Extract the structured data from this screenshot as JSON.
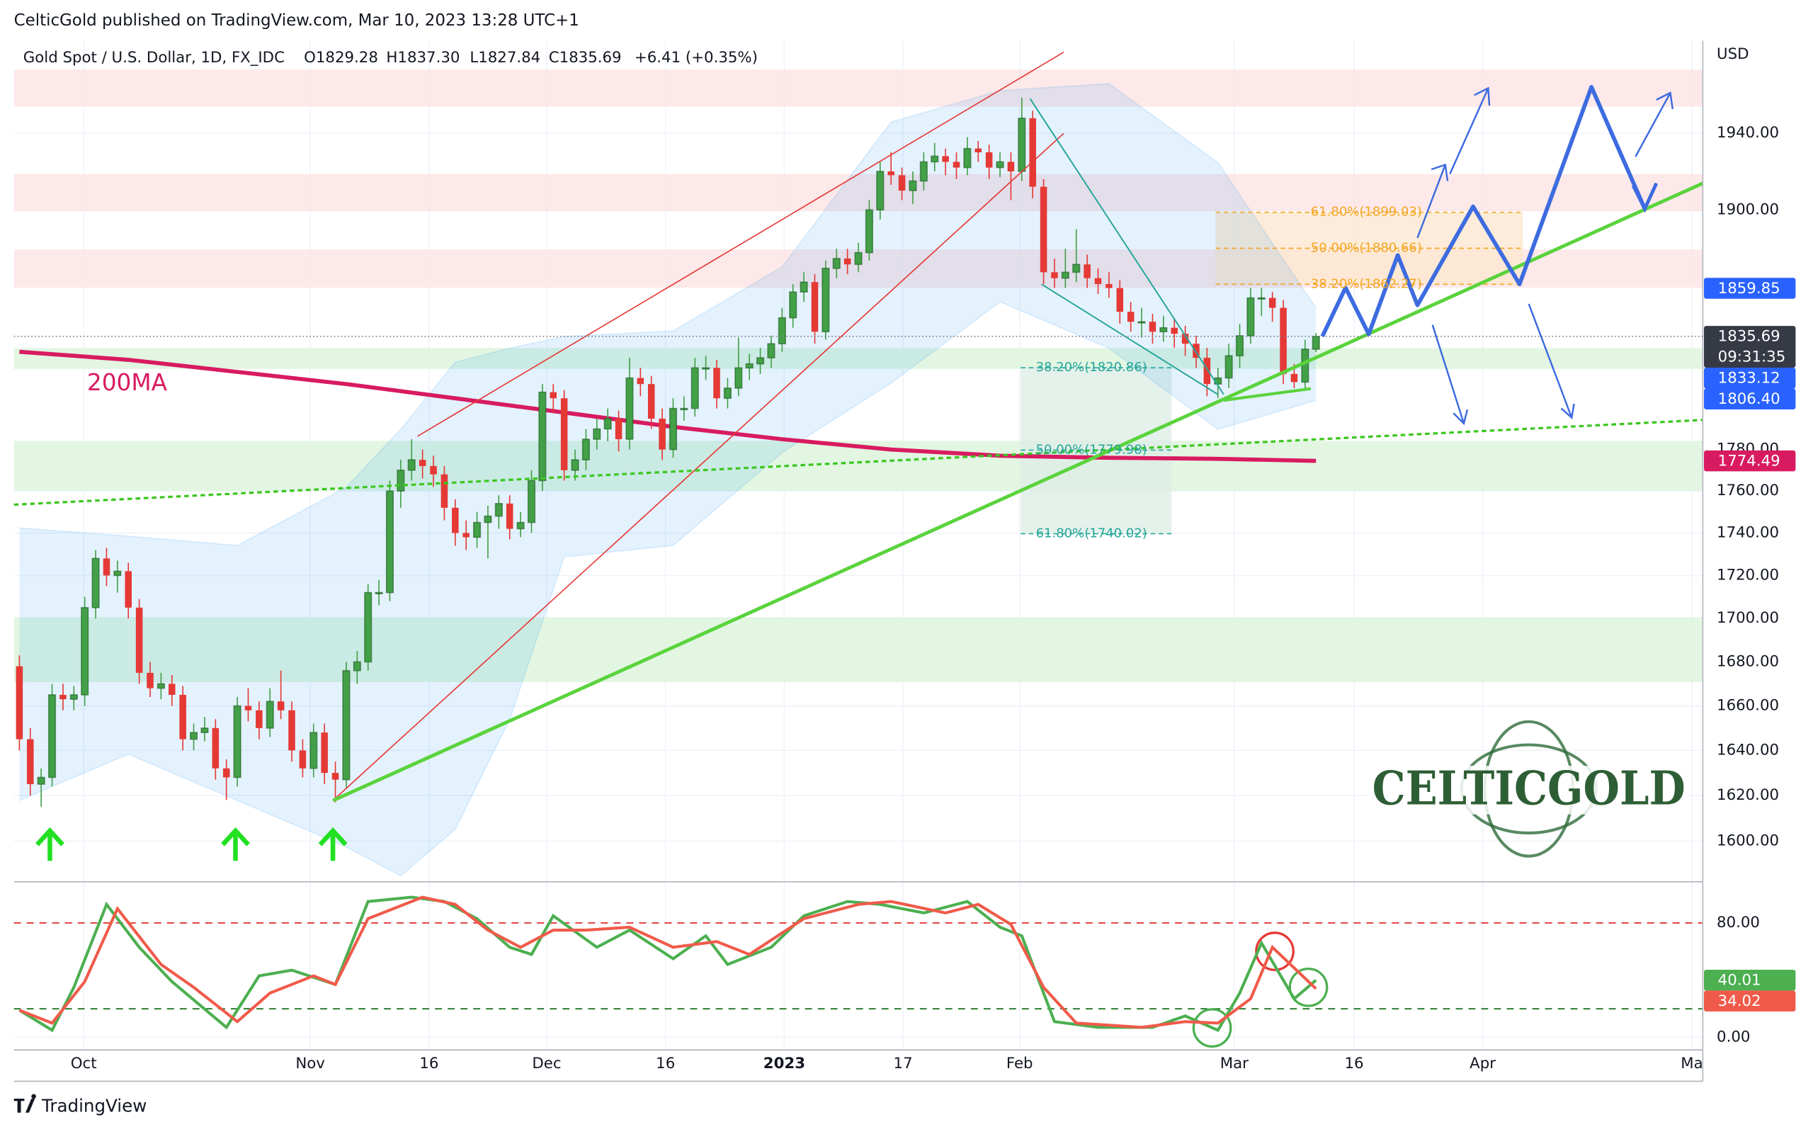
{
  "chart_data": {
    "type": "candlestick",
    "header": "CelticGold published on TradingView.com, Mar 10, 2023 13:28 UTC+1",
    "title": "Gold Spot / U.S. Dollar, 1D, FX_IDC",
    "ohlc_texts": [
      "O1829.28",
      "H1837.30",
      "L1827.84",
      "C1835.69",
      "+6.41 (+0.35%)"
    ],
    "currency": "USD",
    "footer": "TradingView",
    "logo": "CELTICGOLD",
    "log_scale": true,
    "grid": true,
    "up_color": "#43a047",
    "down_color": "#e53935",
    "xlim": [
      -0.5,
      154.5
    ],
    "xticks": [
      {
        "value": 5.9,
        "label": "Oct"
      },
      {
        "value": 26.7,
        "label": "Nov"
      },
      {
        "value": 37.6,
        "label": "16"
      },
      {
        "value": 48.4,
        "label": "Dec"
      },
      {
        "value": 59.3,
        "label": "16"
      },
      {
        "value": 70.2,
        "label": "2023"
      },
      {
        "value": 81.1,
        "label": "17"
      },
      {
        "value": 91.8,
        "label": "Feb"
      },
      {
        "value": 111.5,
        "label": "Mar"
      },
      {
        "value": 122.5,
        "label": "16"
      },
      {
        "value": 134.3,
        "label": "Apr"
      },
      {
        "value": 153.5,
        "label": "Ma"
      }
    ],
    "ylim": [
      1582.4,
      1989.6
    ],
    "yticks": [
      {
        "value": 1600,
        "label": "1600.00"
      },
      {
        "value": 1620,
        "label": "1620.00"
      },
      {
        "value": 1640,
        "label": "1640.00"
      },
      {
        "value": 1660,
        "label": "1660.00"
      },
      {
        "value": 1680,
        "label": "1680.00"
      },
      {
        "value": 1700,
        "label": "1700.00"
      },
      {
        "value": 1720,
        "label": "1720.00"
      },
      {
        "value": 1740,
        "label": "1740.00"
      },
      {
        "value": 1760,
        "label": "1760.00"
      },
      {
        "value": 1780,
        "label": "1780.00"
      },
      {
        "value": 1900,
        "label": "1900.00"
      },
      {
        "value": 1940,
        "label": "1940.00"
      }
    ],
    "candles": [
      [
        1678,
        1683,
        1640,
        1645
      ],
      [
        1645,
        1650,
        1620,
        1625
      ],
      [
        1625,
        1632,
        1615,
        1628
      ],
      [
        1628,
        1670,
        1624,
        1665
      ],
      [
        1665,
        1670,
        1658,
        1663
      ],
      [
        1663,
        1669,
        1658,
        1665
      ],
      [
        1665,
        1710,
        1660,
        1705
      ],
      [
        1705,
        1732,
        1700,
        1728
      ],
      [
        1728,
        1733,
        1715,
        1720
      ],
      [
        1720,
        1727,
        1712,
        1722
      ],
      [
        1722,
        1726,
        1700,
        1705
      ],
      [
        1705,
        1709,
        1670,
        1675
      ],
      [
        1675,
        1680,
        1664,
        1668
      ],
      [
        1668,
        1675,
        1663,
        1670
      ],
      [
        1670,
        1674,
        1660,
        1665
      ],
      [
        1665,
        1669,
        1640,
        1645
      ],
      [
        1645,
        1652,
        1640,
        1648
      ],
      [
        1648,
        1655,
        1644,
        1650
      ],
      [
        1650,
        1654,
        1627,
        1632
      ],
      [
        1632,
        1636,
        1618,
        1628
      ],
      [
        1628,
        1664,
        1624,
        1660
      ],
      [
        1660,
        1668,
        1653,
        1658
      ],
      [
        1658,
        1662,
        1645,
        1650
      ],
      [
        1650,
        1668,
        1646,
        1662
      ],
      [
        1662,
        1676,
        1654,
        1658
      ],
      [
        1658,
        1662,
        1635,
        1640
      ],
      [
        1640,
        1645,
        1628,
        1632
      ],
      [
        1632,
        1652,
        1628,
        1648
      ],
      [
        1648,
        1652,
        1625,
        1630
      ],
      [
        1630,
        1635,
        1617,
        1627
      ],
      [
        1627,
        1680,
        1623,
        1676
      ],
      [
        1676,
        1685,
        1670,
        1680
      ],
      [
        1680,
        1716,
        1676,
        1712
      ],
      [
        1712,
        1718,
        1706,
        1712
      ],
      [
        1712,
        1765,
        1708,
        1760
      ],
      [
        1760,
        1775,
        1752,
        1770
      ],
      [
        1770,
        1785,
        1765,
        1775
      ],
      [
        1775,
        1780,
        1766,
        1772
      ],
      [
        1772,
        1777,
        1762,
        1768
      ],
      [
        1768,
        1772,
        1746,
        1752
      ],
      [
        1752,
        1756,
        1734,
        1740
      ],
      [
        1740,
        1746,
        1732,
        1738
      ],
      [
        1738,
        1750,
        1733,
        1745
      ],
      [
        1745,
        1753,
        1728,
        1748
      ],
      [
        1748,
        1758,
        1742,
        1754
      ],
      [
        1754,
        1758,
        1737,
        1742
      ],
      [
        1742,
        1750,
        1738,
        1745
      ],
      [
        1745,
        1770,
        1740,
        1765
      ],
      [
        1765,
        1812,
        1760,
        1808
      ],
      [
        1808,
        1812,
        1798,
        1805
      ],
      [
        1805,
        1809,
        1765,
        1770
      ],
      [
        1770,
        1780,
        1765,
        1775
      ],
      [
        1775,
        1790,
        1770,
        1785
      ],
      [
        1785,
        1795,
        1780,
        1790
      ],
      [
        1790,
        1800,
        1784,
        1795
      ],
      [
        1795,
        1799,
        1779,
        1785
      ],
      [
        1785,
        1825,
        1780,
        1815
      ],
      [
        1815,
        1820,
        1806,
        1812
      ],
      [
        1812,
        1816,
        1790,
        1795
      ],
      [
        1795,
        1800,
        1775,
        1780
      ],
      [
        1780,
        1805,
        1776,
        1800
      ],
      [
        1800,
        1806,
        1794,
        1800
      ],
      [
        1800,
        1825,
        1796,
        1820
      ],
      [
        1820,
        1826,
        1814,
        1820
      ],
      [
        1820,
        1824,
        1800,
        1805
      ],
      [
        1805,
        1815,
        1800,
        1810
      ],
      [
        1810,
        1835,
        1806,
        1820
      ],
      [
        1820,
        1827,
        1814,
        1822
      ],
      [
        1822,
        1830,
        1817,
        1825
      ],
      [
        1825,
        1836,
        1820,
        1832
      ],
      [
        1832,
        1850,
        1828,
        1845
      ],
      [
        1845,
        1862,
        1840,
        1858
      ],
      [
        1858,
        1868,
        1853,
        1863
      ],
      [
        1863,
        1867,
        1832,
        1838
      ],
      [
        1838,
        1874,
        1834,
        1870
      ],
      [
        1870,
        1880,
        1865,
        1875
      ],
      [
        1875,
        1880,
        1867,
        1872
      ],
      [
        1872,
        1883,
        1868,
        1878
      ],
      [
        1878,
        1905,
        1874,
        1900
      ],
      [
        1900,
        1925,
        1895,
        1920
      ],
      [
        1920,
        1930,
        1913,
        1918
      ],
      [
        1918,
        1922,
        1905,
        1910
      ],
      [
        1910,
        1920,
        1903,
        1915
      ],
      [
        1915,
        1930,
        1910,
        1925
      ],
      [
        1925,
        1935,
        1920,
        1928
      ],
      [
        1928,
        1932,
        1918,
        1925
      ],
      [
        1925,
        1930,
        1916,
        1922
      ],
      [
        1922,
        1938,
        1918,
        1932
      ],
      [
        1932,
        1936,
        1925,
        1930
      ],
      [
        1930,
        1934,
        1916,
        1922
      ],
      [
        1922,
        1930,
        1917,
        1925
      ],
      [
        1925,
        1930,
        1905,
        1920
      ],
      [
        1920,
        1959,
        1915,
        1948
      ],
      [
        1948,
        1952,
        1906,
        1912
      ],
      [
        1912,
        1916,
        1862,
        1868
      ],
      [
        1868,
        1875,
        1860,
        1865
      ],
      [
        1865,
        1880,
        1860,
        1868
      ],
      [
        1868,
        1890,
        1863,
        1872
      ],
      [
        1872,
        1877,
        1860,
        1865
      ],
      [
        1865,
        1870,
        1857,
        1862
      ],
      [
        1862,
        1868,
        1855,
        1860
      ],
      [
        1860,
        1864,
        1842,
        1848
      ],
      [
        1848,
        1853,
        1838,
        1843
      ],
      [
        1843,
        1850,
        1835,
        1843
      ],
      [
        1843,
        1847,
        1832,
        1838
      ],
      [
        1838,
        1846,
        1833,
        1840
      ],
      [
        1840,
        1845,
        1830,
        1837
      ],
      [
        1837,
        1841,
        1826,
        1832
      ],
      [
        1832,
        1836,
        1820,
        1825
      ],
      [
        1825,
        1830,
        1806,
        1812
      ],
      [
        1812,
        1820,
        1805,
        1815
      ],
      [
        1815,
        1832,
        1810,
        1826
      ],
      [
        1826,
        1842,
        1820,
        1836
      ],
      [
        1836,
        1860,
        1832,
        1855
      ],
      [
        1855,
        1860,
        1846,
        1855
      ],
      [
        1855,
        1858,
        1843,
        1850
      ],
      [
        1850,
        1854,
        1812,
        1817
      ],
      [
        1817,
        1822,
        1810,
        1813
      ],
      [
        1813,
        1834,
        1809,
        1829.28
      ],
      [
        1829.28,
        1837.3,
        1827.84,
        1835.69
      ]
    ],
    "countdown": "09:31:35",
    "last_color": "#363a45",
    "ma": {
      "name": "200MA",
      "color": "#d81b60",
      "x": [
        0,
        10,
        20,
        30,
        40,
        50,
        60,
        70,
        80,
        90,
        100,
        110,
        119
      ],
      "values": [
        1828,
        1824,
        1818,
        1812,
        1805,
        1798,
        1791,
        1785,
        1780,
        1777,
        1776,
        1775.5,
        1774.49
      ]
    },
    "bollinger": {
      "color": "#2196f3",
      "x": [
        0,
        10,
        20,
        30,
        35,
        40,
        45,
        50,
        60,
        70,
        80,
        90,
        100,
        110,
        119
      ],
      "upper": [
        1742.4,
        1738.5,
        1734.1,
        1761.8,
        1789.8,
        1822.8,
        1829.8,
        1835.6,
        1838.4,
        1870.7,
        1946,
        1962.7,
        1966.4,
        1924.6,
        1850
      ],
      "lower": [
        1617.8,
        1638.3,
        1617.8,
        1597.5,
        1584.9,
        1605.1,
        1653.9,
        1728.7,
        1734.1,
        1778.5,
        1812.5,
        1853,
        1829.8,
        1789.8,
        1804
      ]
    },
    "price_labels": [
      {
        "value": 1859.85,
        "label": "1859.85",
        "color": "#2962ff"
      },
      {
        "value": 1833.12,
        "label": "1833.12",
        "color": "#2962ff"
      },
      {
        "value": 1806.4,
        "label": "1806.40",
        "color": "#2962ff"
      }
    ],
    "fib_labels": [
      "61.80%(1899.03)",
      "50.00%(1880.66)",
      "38.20%(1862.27)",
      "38.20%(1820.86)",
      "50.00%(1779.98)",
      "61.80%(1740.02)"
    ],
    "stochastic": {
      "ylim": [
        -8.8,
        107.2
      ],
      "yticks": [
        {
          "value": 80,
          "label": "80.00"
        },
        {
          "value": 0,
          "label": "0.00"
        }
      ],
      "levels": [
        80,
        20
      ],
      "series": [
        {
          "color": "#4caf50",
          "x": [
            0,
            3,
            5,
            8,
            11,
            14,
            19,
            22,
            25,
            29,
            32,
            36,
            39,
            42,
            45,
            47,
            49,
            53,
            56,
            60,
            63,
            65,
            69,
            72,
            76,
            79,
            83,
            87,
            90,
            92,
            95,
            99,
            104,
            107,
            110,
            112,
            114,
            117,
            119
          ],
          "values": [
            19,
            5,
            35,
            93,
            63,
            39,
            7,
            43,
            47,
            37,
            95,
            98,
            95,
            83,
            63,
            58,
            85,
            63,
            75,
            55,
            71,
            51,
            63,
            85,
            95,
            93,
            87,
            95,
            77,
            71,
            11,
            7,
            7,
            15,
            5,
            31,
            66,
            27,
            40.01
          ]
        },
        {
          "color": "#f05a4a",
          "x": [
            0,
            3,
            6,
            9,
            13,
            16,
            20,
            23,
            27,
            29,
            32,
            37,
            40,
            43,
            46,
            49,
            52,
            56,
            60,
            64,
            67,
            72,
            77,
            80,
            85,
            88,
            91,
            94,
            97,
            103,
            107,
            110,
            113,
            115,
            119
          ],
          "values": [
            19,
            10,
            39,
            90,
            51,
            35,
            11,
            31,
            43,
            37,
            83,
            98,
            93,
            75,
            63,
            75,
            75,
            77,
            63,
            67,
            58,
            83,
            93,
            95,
            87,
            93,
            79,
            35,
            10,
            7,
            11,
            10,
            27,
            63,
            34.02
          ]
        }
      ]
    }
  }
}
